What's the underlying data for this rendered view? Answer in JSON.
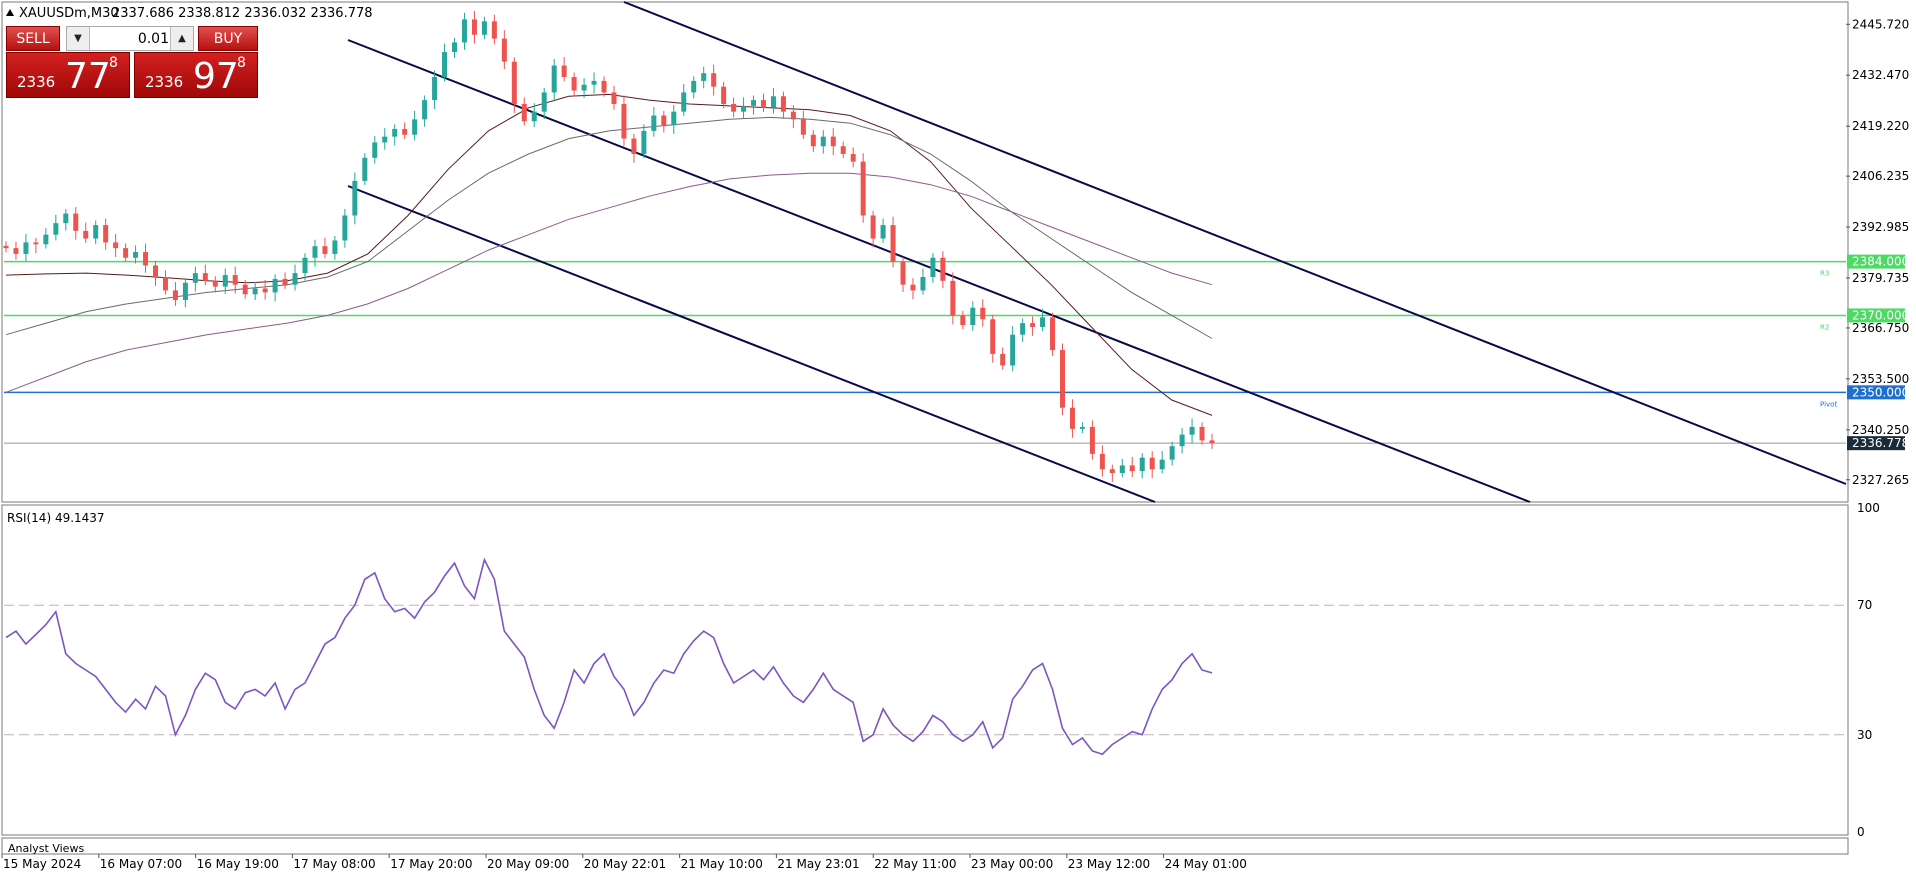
{
  "header": {
    "symbol": "XAUUSDm,M30",
    "ohlc": "2337.686 2338.812 2336.032 2336.778"
  },
  "trade_panel": {
    "sell_label": "SELL",
    "buy_label": "BUY",
    "lot_value": "0.01",
    "sell_price_small": "2336",
    "sell_price_big": "77",
    "sell_price_sup": "8",
    "buy_price_small": "2336",
    "buy_price_big": "97",
    "buy_price_sup": "8"
  },
  "rsi_panel": {
    "label": "RSI(14) 49.1437"
  },
  "bottom_panel": {
    "label": "Analyst Views"
  },
  "colors": {
    "bull": "#26a69a",
    "bear": "#ef5350",
    "support_resistance": "#4cd964",
    "pivot": "#1f6fd1",
    "channel": "#0a0a4a",
    "rsi_line": "#7b55c4",
    "ma_dark": "#5a1a1a",
    "ma_grey": "#6a6a6a",
    "ma_purple": "#8a5c8a"
  },
  "chart_data": [
    {
      "type": "candlestick",
      "title": "XAUUSDm,M30",
      "y_ticks": [
        2445.72,
        2432.47,
        2419.22,
        2406.235,
        2392.985,
        2379.735,
        2366.75,
        2353.5,
        2340.25,
        2327.265
      ],
      "y_tick_labels": [
        "2445.720",
        "2432.470",
        "2419.220",
        "2406.235",
        "2392.985",
        "2379.735",
        "2366.750",
        "2353.500",
        "2340.250",
        "2327.265"
      ],
      "x_tick_labels": [
        "15 May 2024",
        "16 May 07:00",
        "16 May 19:00",
        "17 May 08:00",
        "17 May 20:00",
        "20 May 09:00",
        "20 May 22:01",
        "21 May 10:00",
        "21 May 23:01",
        "22 May 11:00",
        "23 May 00:00",
        "23 May 12:00",
        "24 May 01:00"
      ],
      "levels": [
        {
          "value": 2384.0,
          "label": "2384.000",
          "tag": "R3",
          "kind": "resistance"
        },
        {
          "value": 2370.0,
          "label": "2370.000",
          "tag": "R2",
          "kind": "resistance"
        },
        {
          "value": 2350.0,
          "label": "2350.000",
          "tag": "Pivot",
          "kind": "pivot"
        }
      ],
      "current_price": {
        "value": 2336.778,
        "label": "2336.778"
      },
      "close_series": [
        2387.5,
        2386.0,
        2389.0,
        2388.5,
        2391.0,
        2394.0,
        2396.5,
        2392.0,
        2390.0,
        2393.5,
        2389.0,
        2387.5,
        2385.0,
        2386.5,
        2383.0,
        2380.0,
        2376.5,
        2374.0,
        2378.5,
        2381.0,
        2379.0,
        2377.5,
        2380.5,
        2378.0,
        2375.5,
        2377.0,
        2376.0,
        2379.5,
        2378.0,
        2381.0,
        2385.0,
        2388.0,
        2386.0,
        2389.5,
        2396.0,
        2405.0,
        2411.0,
        2415.0,
        2416.5,
        2418.5,
        2417.0,
        2421.0,
        2426.0,
        2432.0,
        2438.5,
        2441.0,
        2447.0,
        2443.0,
        2446.5,
        2442.0,
        2436.0,
        2425.0,
        2420.5,
        2423.0,
        2428.0,
        2435.0,
        2432.0,
        2428.5,
        2430.0,
        2431.0,
        2428.0,
        2425.0,
        2416.0,
        2412.0,
        2418.0,
        2422.0,
        2419.5,
        2423.0,
        2428.0,
        2431.0,
        2433.0,
        2429.5,
        2425.0,
        2423.0,
        2424.5,
        2426.0,
        2424.0,
        2427.0,
        2423.0,
        2421.0,
        2417.0,
        2414.0,
        2416.5,
        2414.0,
        2412.0,
        2410.0,
        2396.0,
        2390.0,
        2393.5,
        2384.0,
        2378.0,
        2376.5,
        2380.0,
        2385.0,
        2379.0,
        2370.0,
        2367.5,
        2372.0,
        2369.0,
        2360.0,
        2357.0,
        2365.0,
        2368.0,
        2367.0,
        2369.5,
        2361.0,
        2346.0,
        2340.5,
        2341.0,
        2334.0,
        2330.0,
        2329.0,
        2331.0,
        2329.5,
        2333.0,
        2330.0,
        2332.5,
        2336.0,
        2339.0,
        2341.0,
        2337.5,
        2336.8
      ],
      "moving_averages": [
        {
          "color_key": "ma_dark",
          "values": [
            2380.5,
            2380.8,
            2381.0,
            2380.5,
            2379.8,
            2379.0,
            2378.5,
            2379.0,
            2381.0,
            2386.0,
            2396.0,
            2408.0,
            2418.0,
            2424.0,
            2427.0,
            2427.5,
            2426.0,
            2425.0,
            2424.5,
            2424.0,
            2423.5,
            2422.0,
            2418.0,
            2410.0,
            2398.0,
            2388.0,
            2378.0,
            2367.0,
            2356.0,
            2348.0,
            2344.0
          ]
        },
        {
          "color_key": "ma_grey",
          "values": [
            2365.0,
            2368.0,
            2371.0,
            2373.0,
            2374.5,
            2376.0,
            2377.0,
            2378.0,
            2380.0,
            2384.0,
            2392.0,
            2400.0,
            2407.0,
            2412.0,
            2416.0,
            2418.0,
            2419.0,
            2420.0,
            2421.0,
            2421.5,
            2421.0,
            2420.0,
            2417.0,
            2412.0,
            2405.0,
            2397.0,
            2390.0,
            2383.0,
            2376.0,
            2370.0,
            2364.0
          ]
        },
        {
          "color_key": "ma_purple",
          "values": [
            2350.0,
            2354.0,
            2358.0,
            2361.0,
            2363.0,
            2365.0,
            2366.5,
            2368.0,
            2370.0,
            2373.0,
            2377.0,
            2382.0,
            2387.0,
            2391.0,
            2395.0,
            2398.0,
            2401.0,
            2403.5,
            2405.5,
            2406.5,
            2407.0,
            2407.0,
            2406.0,
            2404.0,
            2401.0,
            2397.0,
            2393.0,
            2389.0,
            2385.0,
            2381.0,
            2378.0
          ]
        }
      ],
      "channels": [
        {
          "from": [
            "17 May 08:00",
            2440.0
          ],
          "to_edge": 2332.0
        },
        {
          "from": [
            "17 May 08:00",
            2407.0
          ],
          "to_edge": 2299.0
        },
        {
          "from": [
            "16 May 19:00",
            2458.0
          ],
          "to_edge": 2325.0
        }
      ]
    },
    {
      "type": "line",
      "title": "RSI(14) 49.1437",
      "y_ticks": [
        100,
        70,
        50,
        30,
        0
      ],
      "y_tick_labels": [
        "100",
        "70",
        "30",
        "0"
      ],
      "ylim": [
        0,
        100
      ],
      "levels": [
        70,
        30
      ],
      "series": [
        {
          "name": "RSI(14)",
          "values": [
            60,
            62,
            58,
            61,
            64,
            68,
            55,
            52,
            50,
            48,
            44,
            40,
            37,
            41,
            38,
            45,
            42,
            30,
            36,
            44,
            49,
            47,
            40,
            38,
            43,
            44,
            42,
            46,
            38,
            44,
            46,
            52,
            58,
            60,
            66,
            70,
            78,
            80,
            72,
            68,
            69,
            66,
            71,
            74,
            79,
            83,
            76,
            72,
            84,
            78,
            62,
            58,
            54,
            44,
            36,
            32,
            40,
            50,
            46,
            52,
            55,
            48,
            44,
            36,
            40,
            46,
            50,
            49,
            55,
            59,
            62,
            60,
            52,
            46,
            48,
            50,
            47,
            51,
            46,
            42,
            40,
            44,
            49,
            44,
            42,
            40,
            28,
            30,
            38,
            33,
            30,
            28,
            31,
            36,
            34,
            30,
            28,
            30,
            34,
            26,
            29,
            41,
            45,
            50,
            52,
            44,
            32,
            27,
            29,
            25,
            24,
            27,
            29,
            31,
            30,
            38,
            44,
            47,
            52,
            55,
            50,
            49.1
          ]
        }
      ]
    }
  ]
}
